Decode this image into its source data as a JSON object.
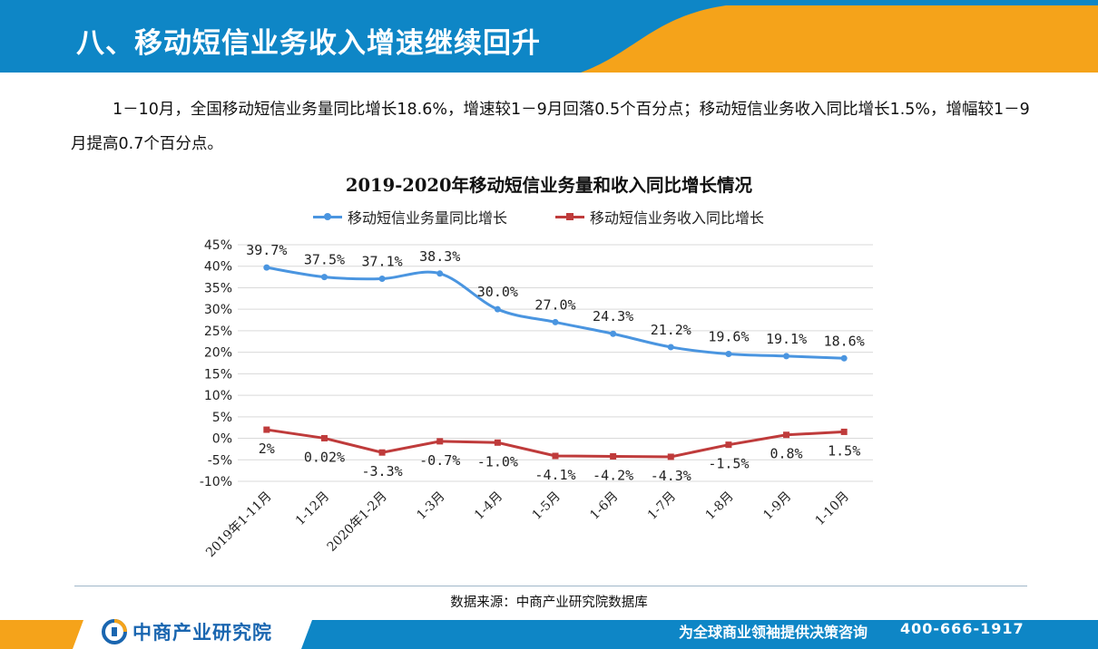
{
  "header": {
    "title": "八、移动短信业务收入增速继续回升",
    "colors": {
      "blue": "#0e86c6",
      "orange": "#f5a31a"
    }
  },
  "intro": {
    "text": "1－10月，全国移动短信业务量同比增长18.6%，增速较1－9月回落0.5个百分点；移动短信业务收入同比增长1.5%，增幅较1－9月提高0.7个百分点。"
  },
  "chart_data": {
    "type": "line",
    "title": "2019-2020年移动短信业务量和收入同比增长情况",
    "categories": [
      "2019年1-11月",
      "1-12月",
      "2020年1-2月",
      "1-3月",
      "1-4月",
      "1-5月",
      "1-6月",
      "1-7月",
      "1-8月",
      "1-9月",
      "1-10月"
    ],
    "series": [
      {
        "name": "移动短信业务量同比增长",
        "color": "#4a95e0",
        "marker": "circle",
        "values": [
          39.7,
          37.5,
          37.1,
          38.3,
          30.0,
          27.0,
          24.3,
          21.2,
          19.6,
          19.1,
          18.6
        ],
        "labels": [
          "39.7%",
          "37.5%",
          "37.1%",
          "38.3%",
          "30.0%",
          "27.0%",
          "24.3%",
          "21.2%",
          "19.6%",
          "19.1%",
          "18.6%"
        ]
      },
      {
        "name": "移动短信业务收入同比增长",
        "color": "#bf3b3b",
        "marker": "square",
        "values": [
          2,
          0.02,
          -3.3,
          -0.7,
          -1.0,
          -4.1,
          -4.2,
          -4.3,
          -1.5,
          0.8,
          1.5
        ],
        "labels": [
          "2%",
          "0.02%",
          "-3.3%",
          "-0.7%",
          "-1.0%",
          "-4.1%",
          "-4.2%",
          "-4.3%",
          "-1.5%",
          "0.8%",
          "1.5%"
        ]
      }
    ],
    "y_ticks": [
      "45%",
      "40%",
      "35%",
      "30%",
      "25%",
      "20%",
      "15%",
      "10%",
      "5%",
      "0%",
      "-5%",
      "-10%"
    ],
    "ylim": [
      -10,
      45
    ],
    "grid": true,
    "legend_position": "top"
  },
  "source": {
    "text": "数据来源：中商产业研究院数据库"
  },
  "footer": {
    "brand": "中商产业研究院",
    "slogan": "为全球商业领袖提供决策咨询",
    "phone": "400-666-1917"
  }
}
